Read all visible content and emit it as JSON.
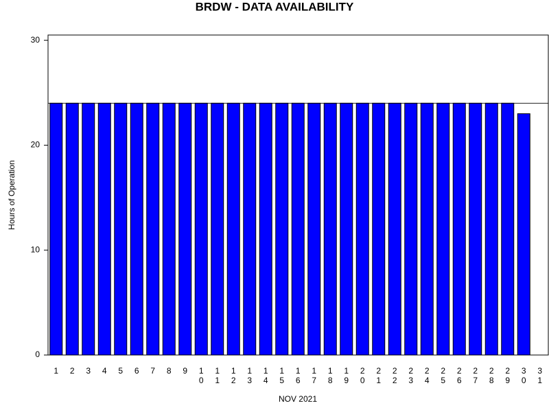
{
  "chart_data": {
    "type": "bar",
    "title": "BRDW - DATA AVAILABILITY",
    "x_label": "NOV 2021",
    "y_label": "Hours of Operation",
    "categories": [
      "1",
      "2",
      "3",
      "4",
      "5",
      "6",
      "7",
      "8",
      "9",
      "10",
      "11",
      "12",
      "13",
      "14",
      "15",
      "16",
      "17",
      "18",
      "19",
      "20",
      "21",
      "22",
      "23",
      "24",
      "25",
      "26",
      "27",
      "28",
      "29",
      "30",
      "31"
    ],
    "values": [
      24,
      24,
      24,
      24,
      24,
      24,
      24,
      24,
      24,
      24,
      24,
      24,
      24,
      24,
      24,
      24,
      24,
      24,
      24,
      24,
      24,
      24,
      24,
      24,
      24,
      24,
      24,
      24,
      24,
      23,
      null
    ],
    "color": "#0000ff",
    "reference_line": 24,
    "ylim": [
      0,
      30.5
    ],
    "yticks": [
      0,
      10,
      20,
      30
    ]
  }
}
